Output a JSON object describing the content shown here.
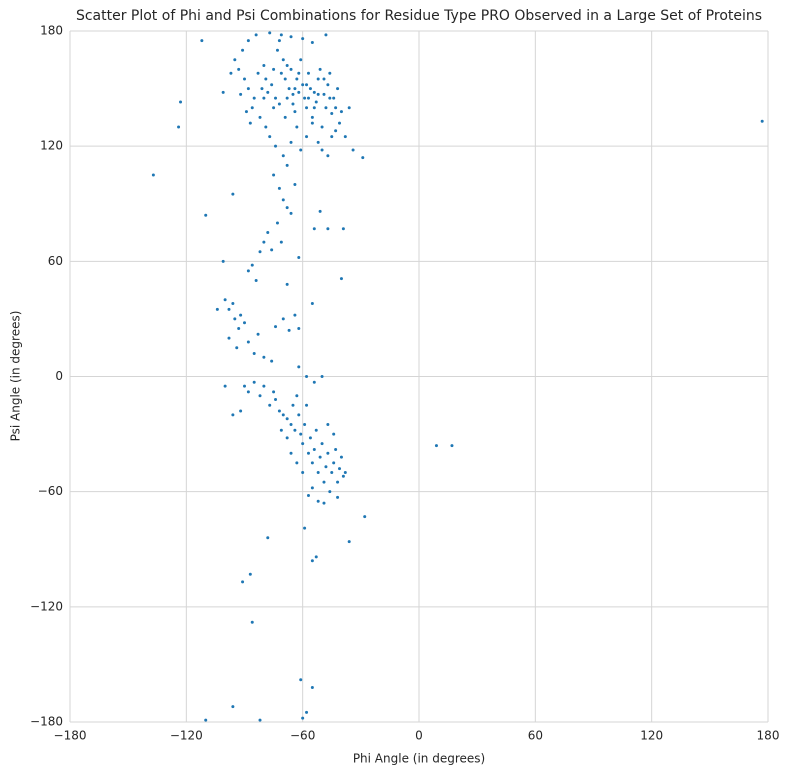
{
  "chart_data": {
    "type": "scatter",
    "title": "Scatter Plot of Phi and Psi Combinations for Residue Type PRO Observed in a Large Set of Proteins",
    "x_label": "Phi Angle (in degrees)",
    "y_label": "Psi Angle (in degrees)",
    "color": "#1f77b4",
    "grid": true,
    "xlim": [
      -180,
      180
    ],
    "ylim": [
      -180,
      180
    ],
    "xticks": [
      {
        "value": -180,
        "label": "−180"
      },
      {
        "value": -120,
        "label": "−120"
      },
      {
        "value": -60,
        "label": "−60"
      },
      0,
      60,
      120,
      180
    ],
    "yticks": [
      {
        "value": -180,
        "label": "−180"
      },
      {
        "value": -120,
        "label": "−120"
      },
      {
        "value": -60,
        "label": "−60"
      },
      0,
      60,
      120,
      180
    ],
    "x": [
      -95,
      -93,
      -90,
      -88,
      -85,
      -83,
      -80,
      -78,
      -76,
      -75,
      -73,
      -72,
      -70,
      -69,
      -68,
      -67,
      -66,
      -65,
      -64,
      -63,
      -62,
      -61,
      -60,
      -59,
      -58,
      -57,
      -56,
      -55,
      -54,
      -53,
      -52,
      -51,
      -50,
      -49,
      -48,
      -47,
      -46,
      -45,
      -44,
      -43,
      -42,
      -41,
      -40,
      -38,
      -36,
      -34,
      -88,
      -84,
      -77,
      -71,
      -66,
      -60,
      -55,
      -48,
      -86,
      -82,
      -79,
      -77,
      -74,
      -70,
      -68,
      -66,
      -63,
      -61,
      -58,
      -55,
      -52,
      -50,
      -47,
      -45,
      -92,
      -97,
      -91,
      -89,
      -87,
      -81,
      -79,
      -74,
      -72,
      -71,
      -69,
      -65,
      -62,
      -57,
      -54,
      -52,
      -49,
      -46,
      -43,
      -58,
      -64,
      -75,
      -80,
      -68,
      -75,
      -72,
      -70,
      -68,
      -73,
      -78,
      -80,
      -82,
      -76,
      -71,
      -66,
      -64,
      -86,
      -88,
      -84,
      -62,
      -54,
      -51,
      -47,
      -68,
      -55,
      -96,
      -100,
      -98,
      -96,
      -95,
      -93,
      -92,
      -90,
      -98,
      -94,
      -88,
      -85,
      -83,
      -80,
      -76,
      -74,
      -70,
      -67,
      -64,
      -104,
      -62,
      -90,
      -88,
      -85,
      -82,
      -80,
      -77,
      -75,
      -72,
      -70,
      -68,
      -66,
      -65,
      -64,
      -63,
      -62,
      -61,
      -60,
      -59,
      -58,
      -57,
      -56,
      -55,
      -54,
      -53,
      -52,
      -51,
      -50,
      -49,
      -48,
      -47,
      -46,
      -45,
      -44,
      -43,
      -42,
      -41,
      -40,
      -39,
      -38,
      -55,
      -52,
      -49,
      -57,
      -60,
      -63,
      -66,
      -68,
      -71,
      -74,
      -96,
      -100,
      -92,
      -58,
      -54,
      -50,
      -62,
      -47,
      -44,
      -42,
      -137,
      -123,
      -124,
      177,
      9,
      17,
      -110,
      -101,
      -110,
      -96,
      -91,
      -87,
      -86,
      -82,
      -78,
      -60,
      -61,
      -58,
      -55,
      -59,
      -55,
      -53,
      -36,
      -28,
      -29,
      -40,
      -39,
      -112,
      -101
    ],
    "values": [
      165,
      160,
      155,
      150,
      145,
      158,
      162,
      148,
      152,
      140,
      170,
      175,
      165,
      155,
      145,
      150,
      160,
      142,
      138,
      155,
      148,
      165,
      152,
      145,
      140,
      158,
      150,
      135,
      148,
      143,
      155,
      160,
      130,
      147,
      140,
      152,
      158,
      137,
      145,
      128,
      150,
      132,
      138,
      125,
      140,
      118,
      175,
      178,
      179,
      178,
      177,
      176,
      174,
      178,
      140,
      135,
      130,
      125,
      120,
      115,
      110,
      122,
      130,
      118,
      125,
      132,
      122,
      118,
      115,
      125,
      147,
      158,
      170,
      138,
      132,
      150,
      155,
      145,
      142,
      158,
      135,
      147,
      158,
      145,
      140,
      147,
      155,
      145,
      140,
      152,
      150,
      160,
      145,
      162,
      105,
      98,
      92,
      88,
      80,
      75,
      70,
      65,
      66,
      70,
      85,
      100,
      58,
      55,
      50,
      62,
      77,
      86,
      77,
      48,
      38,
      95,
      40,
      35,
      38,
      30,
      25,
      32,
      28,
      20,
      15,
      18,
      12,
      22,
      10,
      8,
      26,
      30,
      24,
      32,
      35,
      25,
      -5,
      -8,
      -3,
      -10,
      -5,
      -15,
      -8,
      -18,
      -20,
      -22,
      -25,
      -15,
      -28,
      -10,
      -20,
      -30,
      -35,
      -25,
      -15,
      -40,
      -32,
      -45,
      -38,
      -28,
      -50,
      -42,
      -35,
      -55,
      -47,
      -40,
      -60,
      -50,
      -45,
      -38,
      -55,
      -48,
      -42,
      -52,
      -50,
      -58,
      -65,
      -66,
      -62,
      -50,
      -45,
      -40,
      -32,
      -28,
      -12,
      -20,
      -5,
      -18,
      0,
      -3,
      0,
      5,
      -25,
      -30,
      -63,
      105,
      143,
      130,
      133,
      -36,
      -36,
      84,
      60,
      -179,
      -172,
      -107,
      -103,
      -128,
      -179,
      -84,
      -178,
      -158,
      -175,
      -162,
      -79,
      -96,
      -94,
      -86,
      -73,
      114,
      51,
      77,
      175,
      148
    ]
  }
}
